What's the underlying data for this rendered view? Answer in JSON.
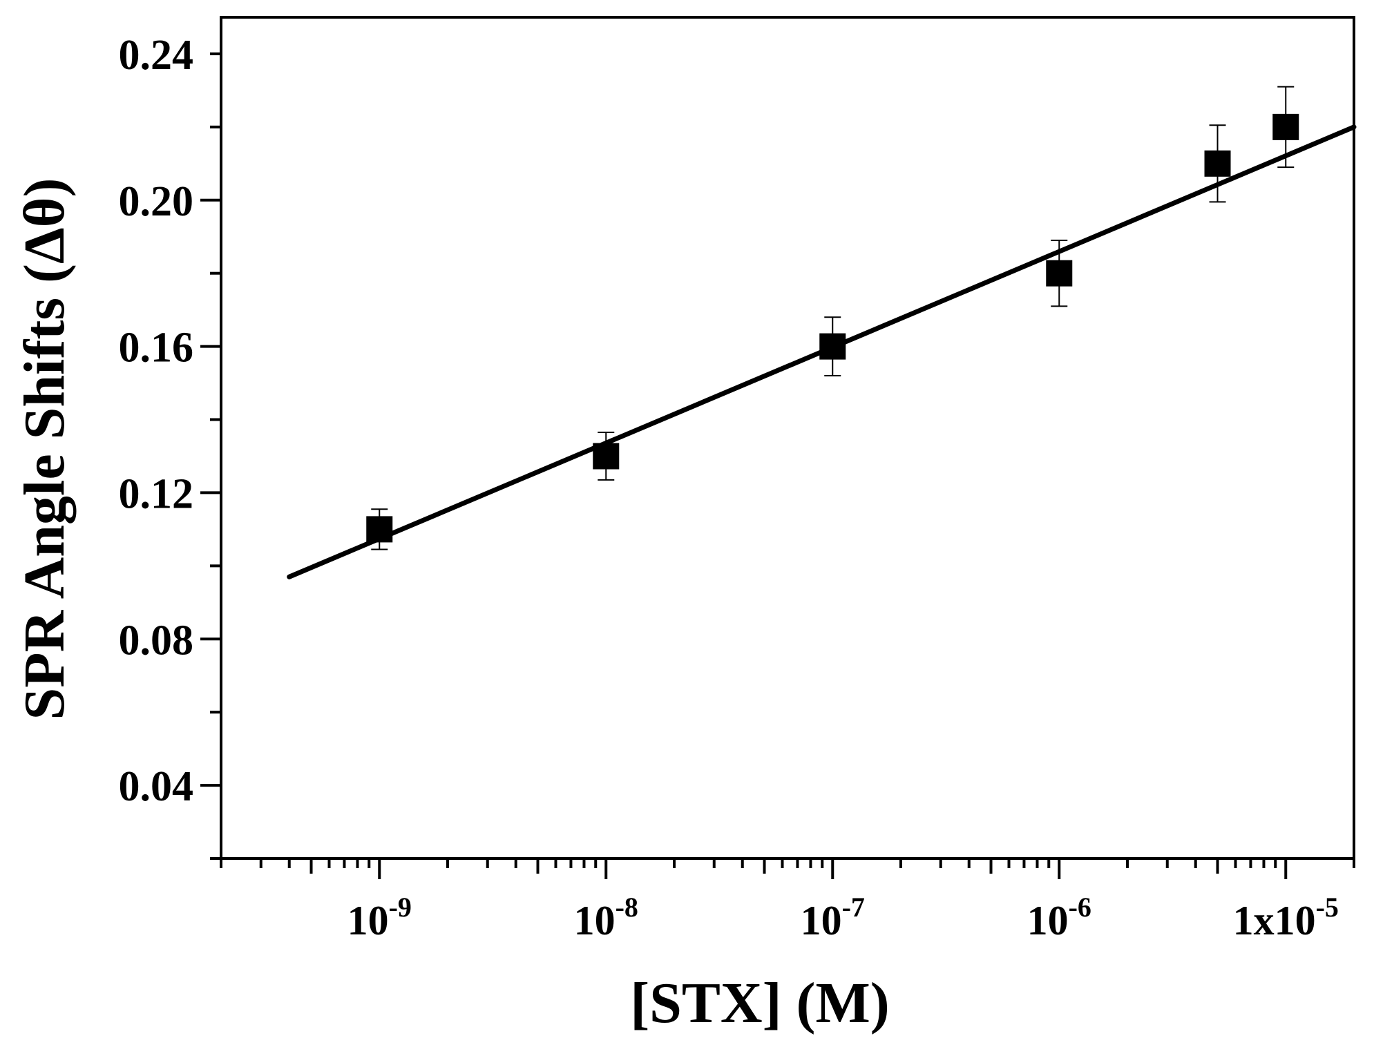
{
  "chart_data": {
    "type": "scatter",
    "title": "",
    "xlabel": "[STX] (M)",
    "ylabel": "SPR Angle Shifts (Δθ)",
    "xscale": "log",
    "xlim": [
      2e-10,
      2e-05
    ],
    "ylim": [
      0.02,
      0.25
    ],
    "grid": false,
    "x_ticks": [
      {
        "value": 1e-09,
        "base": "10",
        "exp": "-9"
      },
      {
        "value": 1e-08,
        "base": "10",
        "exp": "-8"
      },
      {
        "value": 1e-07,
        "base": "10",
        "exp": "-7"
      },
      {
        "value": 1e-06,
        "base": "10",
        "exp": "-6"
      },
      {
        "value": 1e-05,
        "base": "1x10",
        "exp": "-5"
      }
    ],
    "y_ticks": [
      {
        "value": 0.04,
        "label": "0.04"
      },
      {
        "value": 0.08,
        "label": "0.08"
      },
      {
        "value": 0.12,
        "label": "0.12"
      },
      {
        "value": 0.16,
        "label": "0.16"
      },
      {
        "value": 0.2,
        "label": "0.20"
      },
      {
        "value": 0.24,
        "label": "0.24"
      }
    ],
    "series": [
      {
        "marker": "square",
        "color": "#000000",
        "points": [
          {
            "x": 1e-09,
            "y": 0.11,
            "err": 0.0055
          },
          {
            "x": 1e-08,
            "y": 0.13,
            "err": 0.0065
          },
          {
            "x": 1e-07,
            "y": 0.16,
            "err": 0.008
          },
          {
            "x": 1e-06,
            "y": 0.18,
            "err": 0.009
          },
          {
            "x": 5e-06,
            "y": 0.21,
            "err": 0.0105
          },
          {
            "x": 1e-05,
            "y": 0.22,
            "err": 0.011
          }
        ]
      }
    ],
    "fit_line": {
      "x": [
        4e-10,
        2e-05
      ],
      "y": [
        0.097,
        0.22
      ]
    }
  }
}
